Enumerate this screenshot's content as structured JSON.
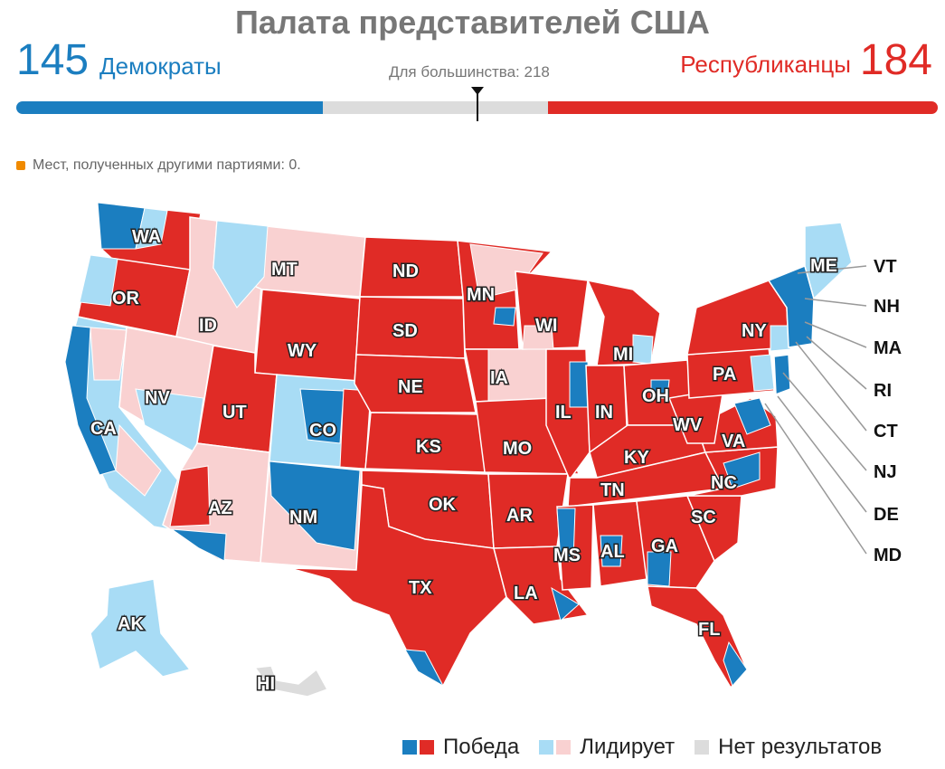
{
  "title": "Палата представителей США",
  "dem": {
    "count": "145",
    "label": "Демократы",
    "color": "#1b7ec0"
  },
  "rep": {
    "count": "184",
    "label": "Республиканцы",
    "color": "#e02b26"
  },
  "majority_label": "Для большинства: 218",
  "other_seats_label": "Мест, полученных другими партиями: 0.",
  "colors": {
    "dem_win": "#1b7ec0",
    "rep_win": "#e02b26",
    "dem_lead": "#a8dcf5",
    "rep_lead": "#f9d1d1",
    "no_result": "#dcdcdc",
    "other": "#f08a00"
  },
  "states": {
    "WA": "WA",
    "OR": "OR",
    "CA": "CA",
    "NV": "NV",
    "ID": "ID",
    "MT": "MT",
    "WY": "WY",
    "UT": "UT",
    "AZ": "AZ",
    "CO": "CO",
    "NM": "NM",
    "ND": "ND",
    "SD": "SD",
    "NE": "NE",
    "KS": "KS",
    "OK": "OK",
    "TX": "TX",
    "MN": "MN",
    "IA": "IA",
    "MO": "MO",
    "AR": "AR",
    "LA": "LA",
    "WI": "WI",
    "IL": "IL",
    "MI": "MI",
    "IN": "IN",
    "OH": "OH",
    "KY": "KY",
    "TN": "TN",
    "MS": "MS",
    "AL": "AL",
    "GA": "GA",
    "FL": "FL",
    "SC": "SC",
    "NC": "NC",
    "VA": "VA",
    "WV": "WV",
    "PA": "PA",
    "NY": "NY",
    "ME": "ME",
    "AK": "AK",
    "HI": "HI"
  },
  "side_labels": [
    "VT",
    "NH",
    "MA",
    "RI",
    "CT",
    "NJ",
    "DE",
    "MD"
  ],
  "legend": {
    "win": "Победа",
    "lead": "Лидирует",
    "none": "Нет результатов"
  }
}
